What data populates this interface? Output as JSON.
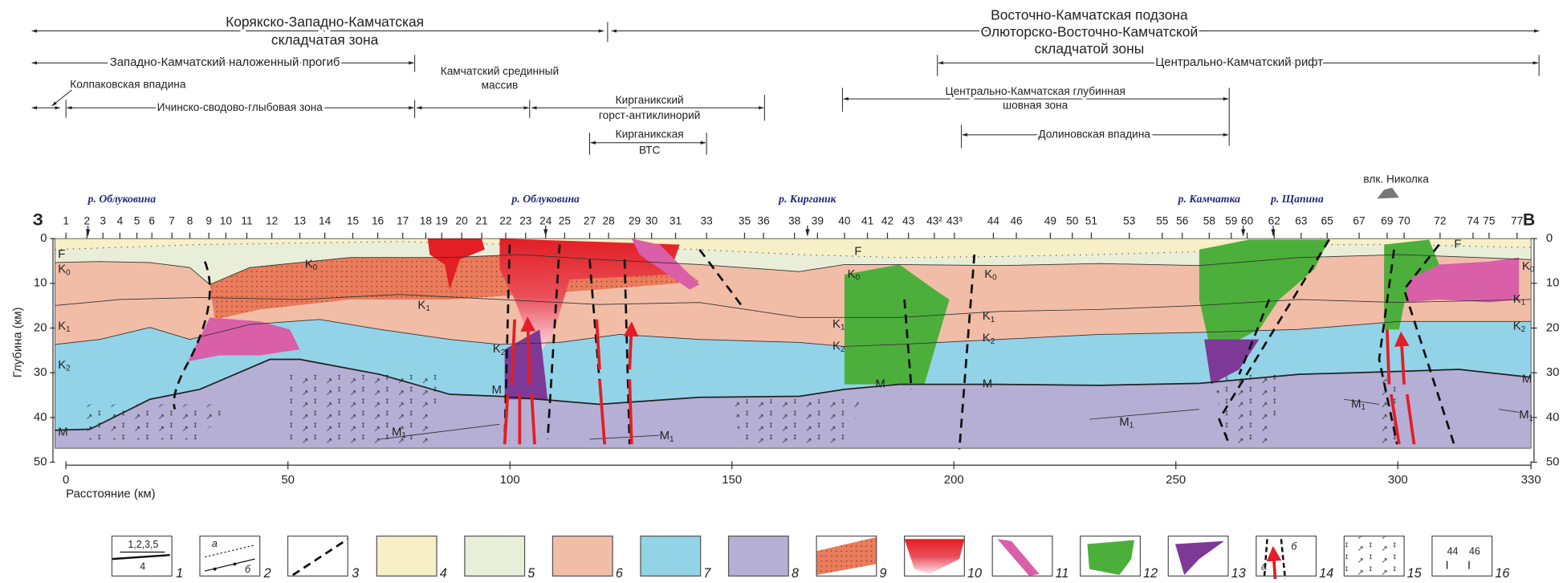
{
  "zones": [
    {
      "lines": [
        "Корякско-Западно-Камчатская",
        "складчатая зона"
      ]
    },
    {
      "lines": [
        "Восточно-Камчатская подзона",
        "Олюторско-Восточно-Камчатской",
        "складчатой зоны"
      ]
    },
    {
      "lines": [
        "Западно-Камчатский наложенный прогиб"
      ]
    },
    {
      "lines": [
        "Центрально-Камчатский рифт"
      ]
    },
    {
      "lines": [
        "Колпаковская впадина"
      ]
    },
    {
      "lines": [
        "Камчатский срединный",
        "массив"
      ]
    },
    {
      "lines": [
        "Ичинско-сводово-глыбовая зона"
      ]
    },
    {
      "lines": [
        "Кирганикский",
        "горст-антиклинорий"
      ]
    },
    {
      "lines": [
        "Центрально-Камчатская глубинная",
        "шовная зона"
      ]
    },
    {
      "lines": [
        "Кирганикская",
        "ВТС"
      ]
    },
    {
      "lines": [
        "Долиновская впадина"
      ]
    }
  ],
  "rivers": [
    "р. Облуковина",
    "р. Облуковина",
    "р. Кирганик",
    "р. Камчатка",
    "р. Щапина"
  ],
  "volcano": "влк. Николка",
  "sides": {
    "west": "З",
    "east": "В"
  },
  "stations": [
    "1",
    "2",
    "3",
    "4",
    "5",
    "6",
    "7",
    "8",
    "9",
    "10",
    "11",
    "12",
    "13",
    "14",
    "15",
    "16",
    "17",
    "18",
    "19",
    "20",
    "21",
    "22",
    "23",
    "24",
    "25",
    "27",
    "28",
    "29",
    "30",
    "31",
    "33",
    "35",
    "36",
    "38",
    "39",
    "40",
    "41",
    "42",
    "43",
    "43²",
    "43³",
    "44",
    "46",
    "49",
    "50",
    "51",
    "53",
    "55",
    "56",
    "58",
    "59",
    "60",
    "62",
    "63",
    "65",
    "67",
    "69",
    "70",
    "72",
    "74",
    "75",
    "77"
  ],
  "depth_axis": {
    "label": "Глубина (км)",
    "ticks": [
      0,
      10,
      20,
      30,
      40,
      50
    ]
  },
  "distance_axis": {
    "label": "Расстояние (км)",
    "ticks": [
      0,
      50,
      100,
      150,
      200,
      250,
      300,
      330
    ]
  },
  "layer_labels": [
    {
      "text": "F"
    },
    {
      "text": "K",
      "sub": "0"
    },
    {
      "text": "K",
      "sub": "1"
    },
    {
      "text": "K",
      "sub": "2"
    },
    {
      "text": "M"
    },
    {
      "text": "K",
      "sub": "0"
    },
    {
      "text": "K",
      "sub": "1"
    },
    {
      "text": "K",
      "sub": "2"
    },
    {
      "text": "M"
    },
    {
      "text": "M",
      "sub": "1"
    },
    {
      "text": "M",
      "sub": "1"
    },
    {
      "text": "F"
    },
    {
      "text": "K",
      "sub": "0"
    },
    {
      "text": "K",
      "sub": "1"
    },
    {
      "text": "K",
      "sub": "2"
    },
    {
      "text": "M"
    },
    {
      "text": "K",
      "sub": "0"
    },
    {
      "text": "K",
      "sub": "1"
    },
    {
      "text": "K",
      "sub": "2"
    },
    {
      "text": "M"
    },
    {
      "text": "M",
      "sub": "1"
    },
    {
      "text": "F"
    },
    {
      "text": "M",
      "sub": "1"
    },
    {
      "text": "M"
    },
    {
      "text": "K",
      "sub": "0"
    },
    {
      "text": "K",
      "sub": "1"
    },
    {
      "text": "K",
      "sub": "2"
    },
    {
      "text": "M",
      "sub": "1"
    }
  ],
  "legend": [
    {
      "number": 1,
      "texts": [
        "1,2,3,5",
        "4"
      ]
    },
    {
      "number": 2,
      "texts": [
        "а",
        "б"
      ]
    },
    {
      "number": 3
    },
    {
      "number": 4
    },
    {
      "number": 5
    },
    {
      "number": 6
    },
    {
      "number": 7
    },
    {
      "number": 8
    },
    {
      "number": 9
    },
    {
      "number": 10
    },
    {
      "number": 11
    },
    {
      "number": 12
    },
    {
      "number": 13
    },
    {
      "number": 14,
      "texts": [
        "а",
        "б"
      ]
    },
    {
      "number": 15
    },
    {
      "number": 16,
      "texts": [
        "44",
        "46"
      ]
    }
  ]
}
